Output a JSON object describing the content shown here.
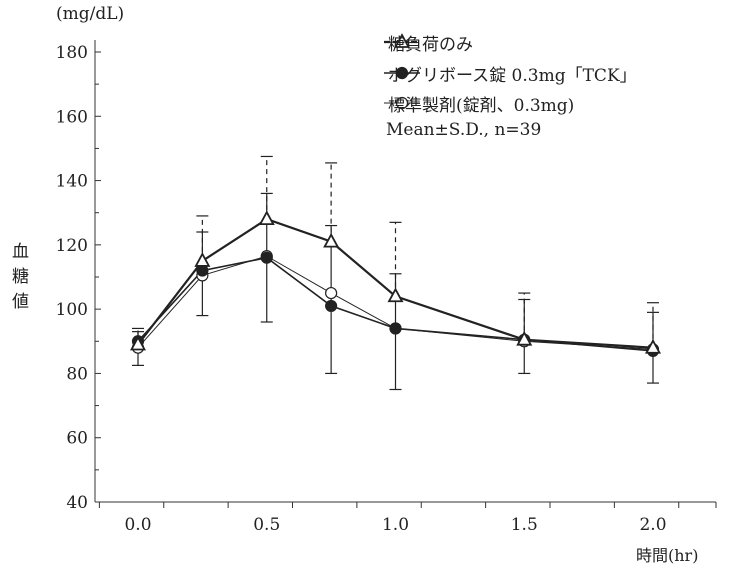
{
  "chart_data": {
    "type": "line",
    "ylabel": "血糖値",
    "yunit": "(mg/dL)",
    "xlabel": "時間(hr)",
    "ylim": [
      40,
      180
    ],
    "yticks": [
      40,
      60,
      80,
      100,
      120,
      140,
      160,
      180
    ],
    "xlim": [
      -0.17,
      2.25
    ],
    "xticks": [
      0.0,
      0.5,
      1.0,
      1.5,
      2.0
    ],
    "xtick_labels": [
      "0.0",
      "0.5",
      "1.0",
      "1.5",
      "2.0"
    ],
    "x": [
      0,
      0.25,
      0.5,
      0.75,
      1.0,
      1.5,
      2.0
    ],
    "grid": false,
    "legend_placement": "top-right",
    "series": [
      {
        "name": "糖負荷のみ",
        "marker": "open-triangle",
        "line": "thick",
        "values": [
          89,
          115,
          128,
          121,
          104,
          90.5,
          88
        ],
        "err_upper": [
          94,
          129,
          147.5,
          145.5,
          127,
          105,
          102
        ],
        "err_style": "dashed"
      },
      {
        "name": "ボグリボース錠 0.3mg「TCK」",
        "marker": "filled-circle",
        "line": "medium",
        "values": [
          90,
          112,
          116,
          101,
          94,
          90.5,
          87
        ],
        "err_upper": [
          93,
          124,
          136,
          126,
          111,
          103,
          99
        ],
        "err_lower": [
          82.5,
          98,
          96,
          80,
          75,
          80,
          77
        ],
        "err_style": "solid"
      },
      {
        "name": "標準製剤(錠剤、0.3mg)",
        "marker": "open-circle",
        "line": "thin",
        "values": [
          88,
          110.5,
          116.5,
          105,
          94,
          90,
          87.5
        ]
      }
    ],
    "annotation": "Mean±S.D.,  n=39"
  }
}
